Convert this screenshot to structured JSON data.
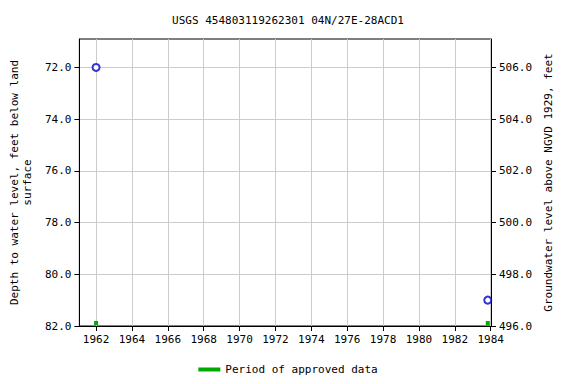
{
  "chart_data": {
    "type": "scatter",
    "title": "USGS 454803119262301 04N/27E-28ACD1",
    "x_label": null,
    "y_label": "Depth to water level, feet below land\nsurface",
    "y2_label": "Groundwater level above NGVD 1929, feet",
    "x": [
      1962.0,
      1983.84
    ],
    "values": [
      72.0,
      81.0
    ],
    "color": "#0000cc",
    "marker": "circle",
    "xlim": [
      1961.07,
      1984.02
    ],
    "xticks": [
      1962,
      1964,
      1966,
      1968,
      1970,
      1972,
      1974,
      1976,
      1978,
      1980,
      1982,
      1984
    ],
    "ylim": [
      70.9,
      82.0
    ],
    "yticks": [
      {
        "value": 72,
        "label": "72.0"
      },
      {
        "value": 74,
        "label": "74.0"
      },
      {
        "value": 76,
        "label": "76.0"
      },
      {
        "value": 78,
        "label": "78.0"
      },
      {
        "value": 80,
        "label": "80.0"
      },
      {
        "value": 82,
        "label": "82.0"
      }
    ],
    "y2lim": [
      496.0,
      507.1
    ],
    "y2ticks": [
      {
        "value": 496,
        "label": "496.0"
      },
      {
        "value": 498,
        "label": "498.0"
      },
      {
        "value": 500,
        "label": "500.0"
      },
      {
        "value": 502,
        "label": "502.0"
      },
      {
        "value": 504,
        "label": "504.0"
      },
      {
        "value": 506,
        "label": "506.0"
      }
    ],
    "approved_data": {
      "name": "Period of approved data",
      "color": "#00aa00",
      "x": [
        1962.0,
        1983.84
      ]
    },
    "legend": "bottom",
    "grid": true
  }
}
